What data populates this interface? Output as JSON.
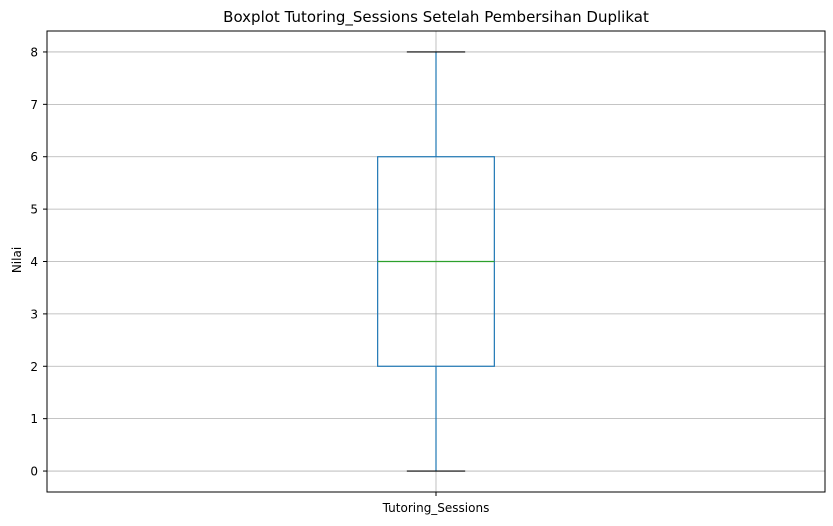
{
  "chart_data": {
    "type": "box",
    "title": "Boxplot Tutoring_Sessions Setelah Pembersihan Duplikat",
    "xlabel": "",
    "ylabel": "Nilai",
    "categories": [
      "Tutoring_Sessions"
    ],
    "boxes": [
      {
        "category": "Tutoring_Sessions",
        "whisker_low": 0,
        "q1": 2,
        "median": 4,
        "q3": 6,
        "whisker_high": 8
      }
    ],
    "ylim": [
      -0.4,
      8.4
    ],
    "yticks": [
      0,
      1,
      2,
      3,
      4,
      5,
      6,
      7,
      8
    ],
    "grid": true,
    "colors": {
      "box": "#1f77b4",
      "median": "#2ca02c",
      "whisker_cap": "#000000",
      "grid": "#b0b0b0"
    }
  }
}
